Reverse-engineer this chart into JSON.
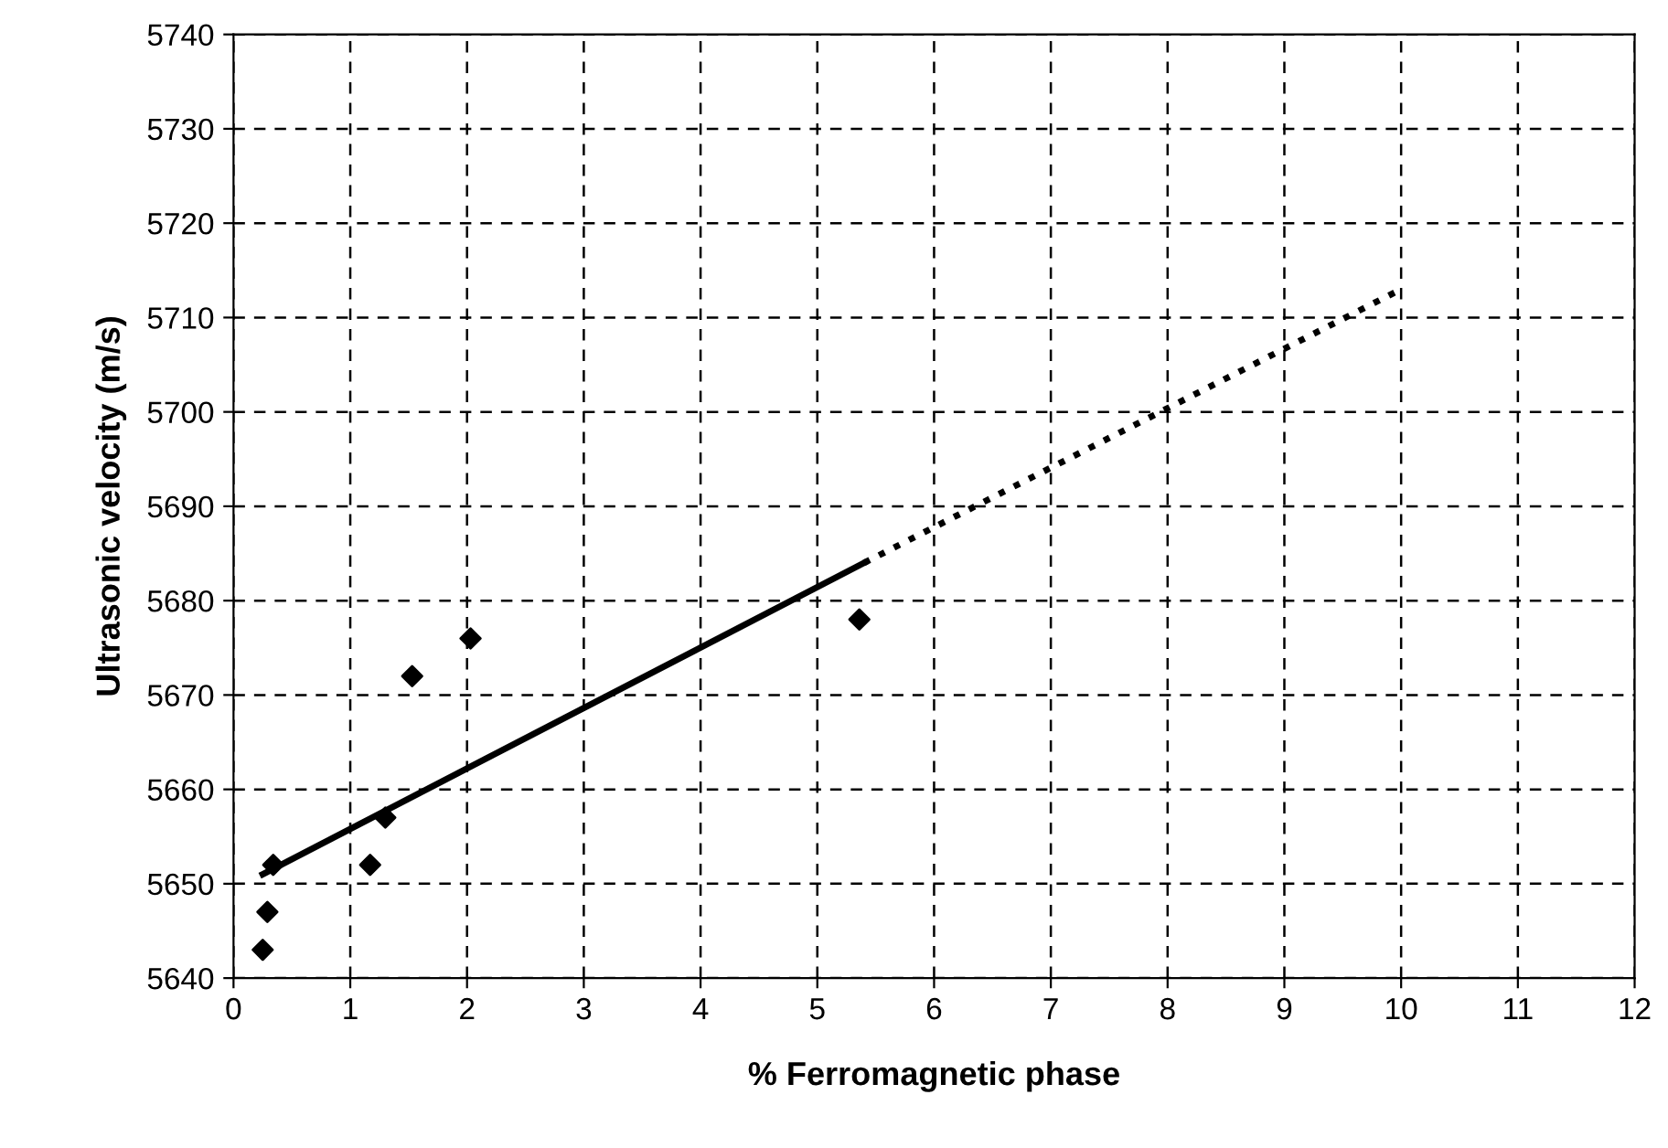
{
  "chart_data": {
    "type": "scatter",
    "xlabel": "% Ferromagnetic phase",
    "ylabel": "Ultrasonic velocity (m/s)",
    "xlim": [
      0,
      12
    ],
    "xticks": [
      0,
      1,
      2,
      3,
      4,
      5,
      6,
      7,
      8,
      9,
      10,
      11,
      12
    ],
    "ylim": [
      5640,
      5740
    ],
    "yticks": [
      5640,
      5650,
      5660,
      5670,
      5680,
      5690,
      5700,
      5710,
      5720,
      5730,
      5740
    ],
    "grid": true,
    "marker": "diamond",
    "series": [
      {
        "color": "#000000",
        "x": [
          0.25,
          0.29,
          0.34,
          1.17,
          1.3,
          1.53,
          2.03,
          5.36
        ],
        "values": [
          5643,
          5647,
          5652,
          5652,
          5657,
          5672,
          5676,
          5678
        ]
      },
      {
        "type": "line",
        "color": "#000000",
        "line_style": "solid",
        "marker": "none",
        "x": [
          0.25,
          5.4
        ],
        "values": [
          5651,
          5684
        ]
      },
      {
        "type": "line",
        "color": "#000000",
        "line_style": "dotted",
        "marker": "none",
        "x": [
          5.4,
          10
        ],
        "values": [
          5684,
          5713
        ]
      }
    ]
  }
}
